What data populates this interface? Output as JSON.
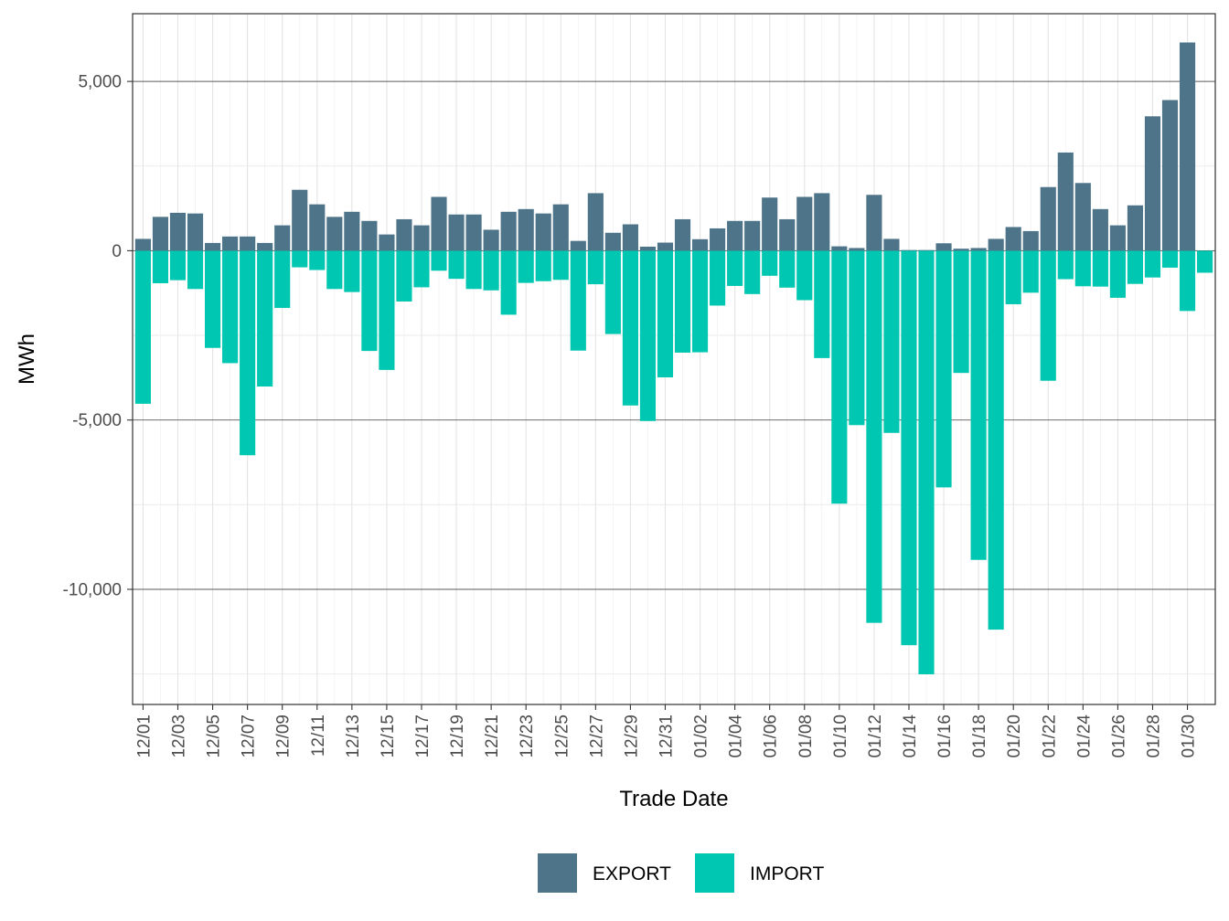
{
  "chart_data": {
    "type": "bar",
    "stacked": true,
    "xlabel": "Trade Date",
    "ylabel": "MWh",
    "categories": [
      "12/01",
      "12/02",
      "12/03",
      "12/04",
      "12/05",
      "12/06",
      "12/07",
      "12/08",
      "12/09",
      "12/10",
      "12/11",
      "12/12",
      "12/13",
      "12/14",
      "12/15",
      "12/16",
      "12/17",
      "12/18",
      "12/19",
      "12/20",
      "12/21",
      "12/22",
      "12/23",
      "12/24",
      "12/25",
      "12/26",
      "12/27",
      "12/28",
      "12/29",
      "12/30",
      "12/31",
      "01/01",
      "01/02",
      "01/03",
      "01/04",
      "01/05",
      "01/06",
      "01/07",
      "01/08",
      "01/09",
      "01/10",
      "01/11",
      "01/12",
      "01/13",
      "01/14",
      "01/15",
      "01/16",
      "01/17",
      "01/18",
      "01/19",
      "01/20",
      "01/21",
      "01/22",
      "01/23",
      "01/24",
      "01/25",
      "01/26",
      "01/27",
      "01/28",
      "01/29",
      "01/30",
      "01/31"
    ],
    "tick_labels": [
      "12/01",
      "12/03",
      "12/05",
      "12/07",
      "12/09",
      "12/11",
      "12/13",
      "12/15",
      "12/17",
      "12/19",
      "12/21",
      "12/23",
      "12/25",
      "12/27",
      "12/29",
      "12/31",
      "01/02",
      "01/04",
      "01/06",
      "01/08",
      "01/10",
      "01/12",
      "01/14",
      "01/16",
      "01/18",
      "01/20",
      "01/22",
      "01/24",
      "01/26",
      "01/28",
      "01/30"
    ],
    "y_ticks": [
      5000,
      0,
      -5000,
      -10000
    ],
    "y_tick_labels": [
      "5,000",
      "0",
      "-5,000",
      "-10,000"
    ],
    "ylim": [
      -13400,
      7000
    ],
    "grid": true,
    "legend_position": "bottom",
    "series": [
      {
        "name": "EXPORT",
        "color": "#4e7489",
        "values": [
          350,
          1000,
          1120,
          1100,
          230,
          420,
          420,
          230,
          750,
          1800,
          1370,
          1000,
          1150,
          880,
          480,
          930,
          750,
          1590,
          1070,
          1070,
          620,
          1150,
          1230,
          1100,
          1370,
          290,
          1700,
          530,
          780,
          120,
          240,
          930,
          340,
          660,
          880,
          880,
          1570,
          930,
          1590,
          1700,
          130,
          80,
          1650,
          350,
          20,
          20,
          220,
          60,
          80,
          350,
          700,
          580,
          1880,
          2900,
          2000,
          1230,
          750,
          1340,
          3970,
          4450,
          6150,
          0
        ],
        "_note_last_value_placeholder": ""
      },
      {
        "name": "IMPORT",
        "color": "#00c7b1",
        "values": [
          -4520,
          -960,
          -870,
          -1130,
          -2870,
          -3320,
          -6040,
          -4010,
          -1690,
          -490,
          -570,
          -1130,
          -1220,
          -2960,
          -3520,
          -1500,
          -1080,
          -590,
          -830,
          -1130,
          -1170,
          -1890,
          -950,
          -900,
          -860,
          -2950,
          -990,
          -2460,
          -4570,
          -5030,
          -3740,
          -3010,
          -3000,
          -1620,
          -1040,
          -1280,
          -740,
          -1090,
          -1460,
          -3170,
          -7470,
          -5150,
          -10990,
          -5380,
          -11650,
          -12510,
          -6990,
          -3610,
          -9130,
          -11190,
          -1580,
          -1240,
          -3840,
          -840,
          -1050,
          -1060,
          -1390,
          -980,
          -790,
          -500,
          -1780,
          -650
        ],
        "_note_last_value_placeholder": ""
      }
    ]
  }
}
